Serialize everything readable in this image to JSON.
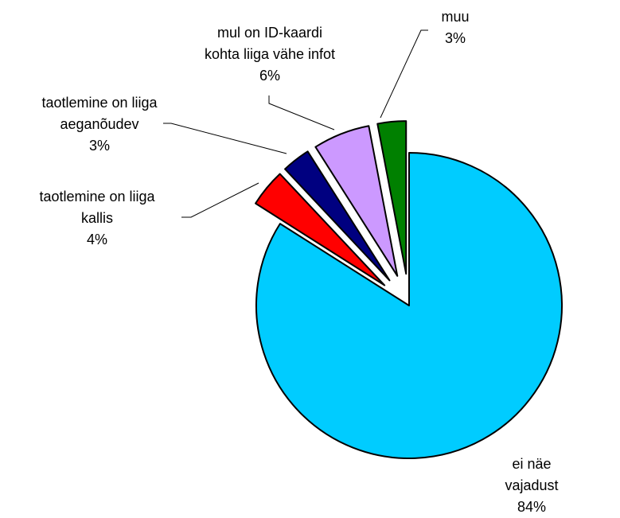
{
  "chart_data": {
    "type": "pie",
    "categories": [
      "ei näe vajadust",
      "taotlemine on liiga\nkallis",
      "taotlemine on liiga\naeganõudev",
      "mul on ID-kaardi\nkohta liiga vähe infot",
      "muu"
    ],
    "values": [
      84,
      4,
      3,
      6,
      3
    ],
    "value_labels": [
      "84%",
      "4%",
      "3%",
      "6%",
      "3%"
    ],
    "colors": [
      "#00ccff",
      "#ff0000",
      "#000080",
      "#cc99ff",
      "#008000"
    ]
  }
}
